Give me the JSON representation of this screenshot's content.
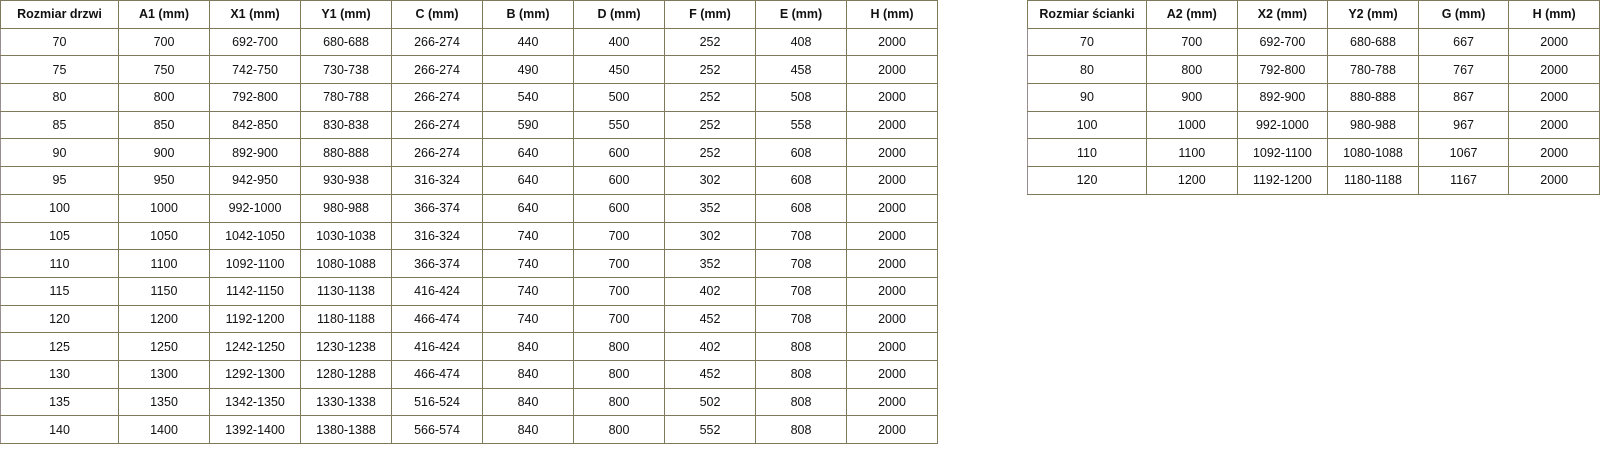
{
  "door_table": {
    "headers": [
      "Rozmiar drzwi",
      "A1 (mm)",
      "X1 (mm)",
      "Y1 (mm)",
      "C (mm)",
      "B (mm)",
      "D (mm)",
      "F (mm)",
      "E (mm)",
      "H (mm)"
    ],
    "rows": [
      [
        "70",
        "700",
        "692-700",
        "680-688",
        "266-274",
        "440",
        "400",
        "252",
        "408",
        "2000"
      ],
      [
        "75",
        "750",
        "742-750",
        "730-738",
        "266-274",
        "490",
        "450",
        "252",
        "458",
        "2000"
      ],
      [
        "80",
        "800",
        "792-800",
        "780-788",
        "266-274",
        "540",
        "500",
        "252",
        "508",
        "2000"
      ],
      [
        "85",
        "850",
        "842-850",
        "830-838",
        "266-274",
        "590",
        "550",
        "252",
        "558",
        "2000"
      ],
      [
        "90",
        "900",
        "892-900",
        "880-888",
        "266-274",
        "640",
        "600",
        "252",
        "608",
        "2000"
      ],
      [
        "95",
        "950",
        "942-950",
        "930-938",
        "316-324",
        "640",
        "600",
        "302",
        "608",
        "2000"
      ],
      [
        "100",
        "1000",
        "992-1000",
        "980-988",
        "366-374",
        "640",
        "600",
        "352",
        "608",
        "2000"
      ],
      [
        "105",
        "1050",
        "1042-1050",
        "1030-1038",
        "316-324",
        "740",
        "700",
        "302",
        "708",
        "2000"
      ],
      [
        "110",
        "1100",
        "1092-1100",
        "1080-1088",
        "366-374",
        "740",
        "700",
        "352",
        "708",
        "2000"
      ],
      [
        "115",
        "1150",
        "1142-1150",
        "1130-1138",
        "416-424",
        "740",
        "700",
        "402",
        "708",
        "2000"
      ],
      [
        "120",
        "1200",
        "1192-1200",
        "1180-1188",
        "466-474",
        "740",
        "700",
        "452",
        "708",
        "2000"
      ],
      [
        "125",
        "1250",
        "1242-1250",
        "1230-1238",
        "416-424",
        "840",
        "800",
        "402",
        "808",
        "2000"
      ],
      [
        "130",
        "1300",
        "1292-1300",
        "1280-1288",
        "466-474",
        "840",
        "800",
        "452",
        "808",
        "2000"
      ],
      [
        "135",
        "1350",
        "1342-1350",
        "1330-1338",
        "516-524",
        "840",
        "800",
        "502",
        "808",
        "2000"
      ],
      [
        "140",
        "1400",
        "1392-1400",
        "1380-1388",
        "566-574",
        "840",
        "800",
        "552",
        "808",
        "2000"
      ]
    ]
  },
  "wall_table": {
    "headers": [
      "Rozmiar ścianki",
      "A2 (mm)",
      "X2 (mm)",
      "Y2 (mm)",
      "G (mm)",
      "H (mm)"
    ],
    "rows": [
      [
        "70",
        "700",
        "692-700",
        "680-688",
        "667",
        "2000"
      ],
      [
        "80",
        "800",
        "792-800",
        "780-788",
        "767",
        "2000"
      ],
      [
        "90",
        "900",
        "892-900",
        "880-888",
        "867",
        "2000"
      ],
      [
        "100",
        "1000",
        "992-1000",
        "980-988",
        "967",
        "2000"
      ],
      [
        "110",
        "1100",
        "1092-1100",
        "1080-1088",
        "1067",
        "2000"
      ],
      [
        "120",
        "1200",
        "1192-1200",
        "1180-1188",
        "1167",
        "2000"
      ]
    ]
  }
}
